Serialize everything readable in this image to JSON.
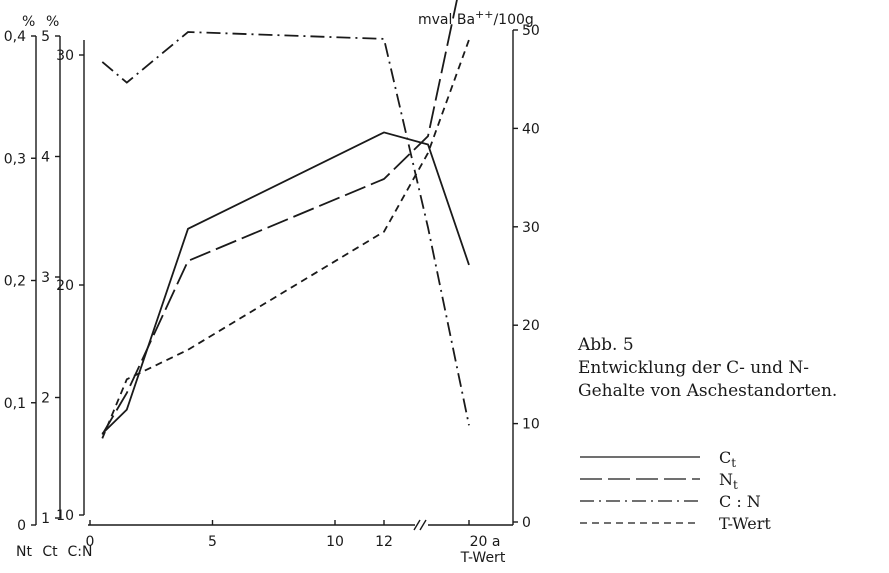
{
  "figure": {
    "label": "Abb. 5",
    "caption_line1": "Entwicklung der C- und N-",
    "caption_line2": "Gehalte von Aschestandorten."
  },
  "chart_data": {
    "type": "line",
    "title": "",
    "x_ticks": [
      {
        "label": "0",
        "value": 0
      },
      {
        "label": "5",
        "value": 5
      },
      {
        "label": "10",
        "value": 10
      },
      {
        "label": "12",
        "value": 12
      },
      {
        "label": "20 a",
        "value": 20
      }
    ],
    "x_break": true,
    "x_break_note": "axis break between 12 and 20",
    "xlabel": "T-Wert",
    "axes": {
      "Nt": {
        "label": "Nt",
        "unit": "%",
        "range": [
          0,
          0.4
        ],
        "ticks": [
          "0",
          "0,1",
          "0,2",
          "0,3",
          "0,4"
        ]
      },
      "Ct": {
        "label": "Ct",
        "unit": "%",
        "range": [
          1,
          5
        ],
        "ticks": [
          "1",
          "2",
          "3",
          "4",
          "5"
        ]
      },
      "CN": {
        "label": "C:N",
        "range": [
          10,
          30
        ],
        "ticks": [
          "10",
          "20",
          "30"
        ]
      },
      "T": {
        "label": "T-Wert",
        "unit": "mval Ba++/100g",
        "range": [
          0,
          50
        ],
        "ticks": [
          "0",
          "10",
          "20",
          "30",
          "40",
          "50"
        ]
      }
    },
    "series": [
      {
        "name": "Ct",
        "style": "solid",
        "x": [
          0.5,
          1.5,
          4,
          12,
          13,
          20
        ],
        "y": [
          1.7,
          1.9,
          3.4,
          4.2,
          4.1,
          3.1
        ]
      },
      {
        "name": "Nt",
        "style": "long-dash",
        "x": [
          0.5,
          1.5,
          4,
          12,
          13,
          20
        ],
        "y": [
          0.074,
          0.108,
          0.216,
          0.283,
          0.318,
          0.476
        ]
      },
      {
        "name": "C : N",
        "style": "dash-dot",
        "x": [
          0.5,
          1.5,
          4,
          12,
          13,
          20
        ],
        "y": [
          29.7,
          28.8,
          31.0,
          30.7,
          22.5,
          13.9
        ]
      },
      {
        "name": "T-Wert",
        "style": "short-dash",
        "x": [
          0.5,
          1.5,
          4,
          12,
          13,
          20
        ],
        "y": [
          8.5,
          14.5,
          17.5,
          29.5,
          37.5,
          49.0
        ]
      }
    ],
    "legend": {
      "placement": "right"
    }
  }
}
